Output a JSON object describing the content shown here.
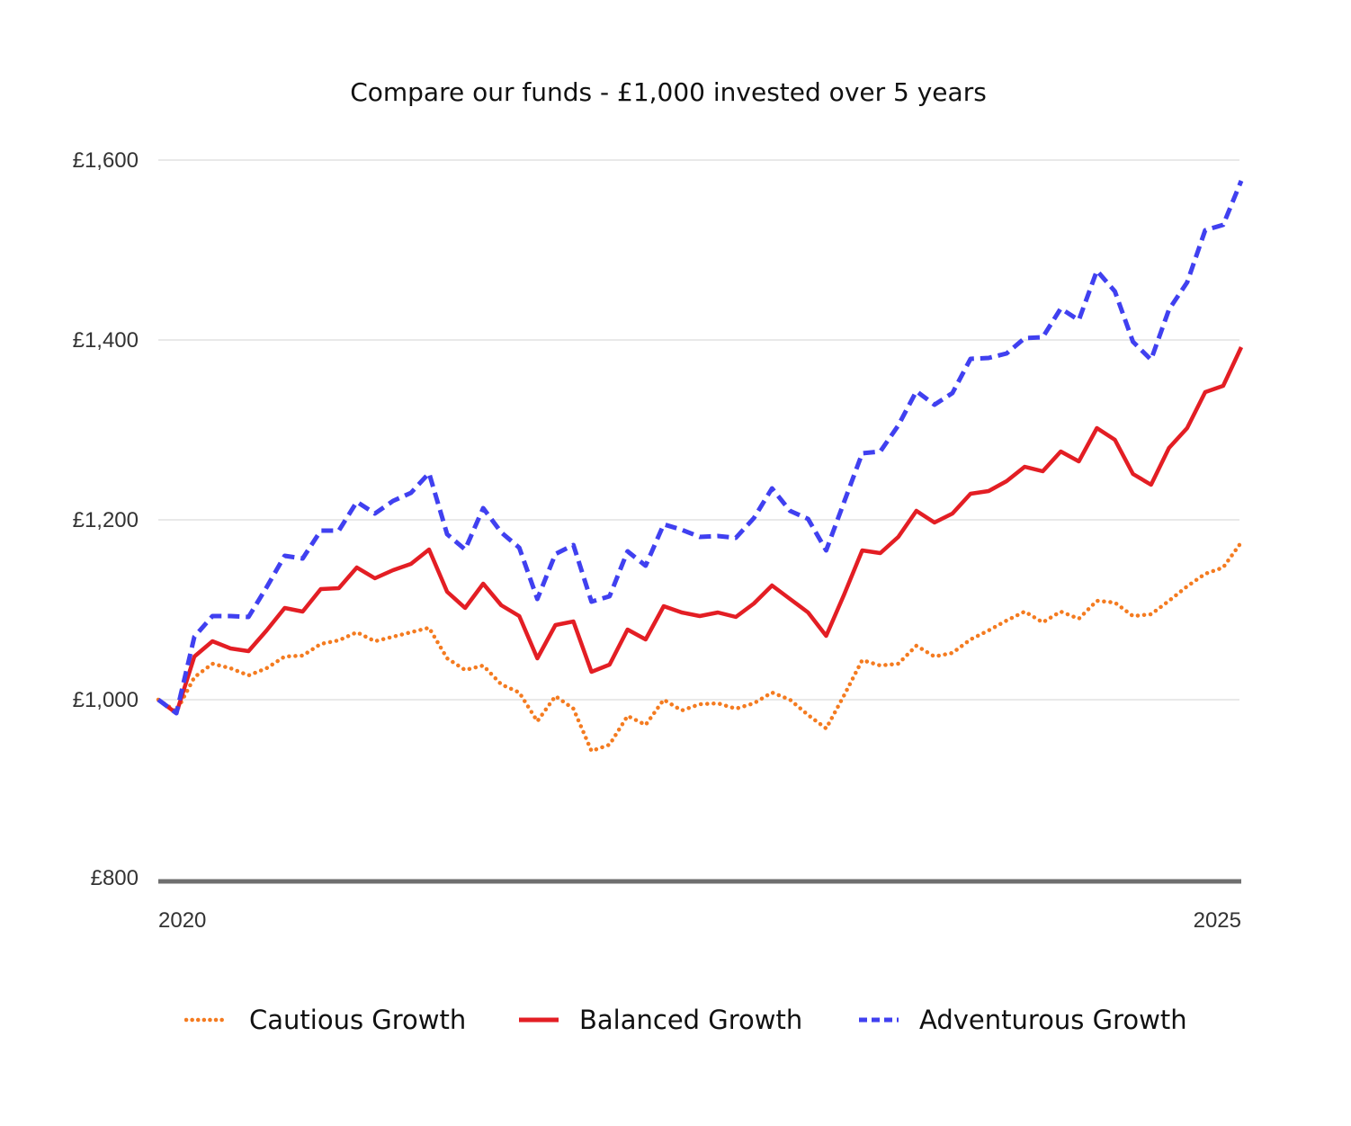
{
  "title": "Compare our funds - £1,000 invested over 5 years",
  "y_tick_labels": [
    "£800",
    "£1,000",
    "£1,200",
    "£1,400",
    "£1,600"
  ],
  "x_tick_labels": [
    "2020",
    "2025"
  ],
  "legend": [
    {
      "label": "Cautious Growth"
    },
    {
      "label": "Balanced Growth"
    },
    {
      "label": "Adventurous Growth"
    }
  ],
  "chart_data": {
    "type": "line",
    "title": "Compare our funds - £1,000 invested over 5 years",
    "xlabel": "",
    "ylabel": "",
    "x_range": [
      "2020",
      "2025"
    ],
    "ylim": [
      800,
      1600
    ],
    "yticks": [
      800,
      1000,
      1200,
      1400,
      1600
    ],
    "grid": true,
    "legend_position": "bottom",
    "series": [
      {
        "name": "Cautious Growth",
        "color": "#f47b20",
        "style": "dotted",
        "values": [
          1000,
          987,
          1025,
          1040,
          1035,
          1027,
          1035,
          1048,
          1049,
          1062,
          1066,
          1075,
          1065,
          1070,
          1075,
          1080,
          1046,
          1033,
          1038,
          1017,
          1008,
          976,
          1004,
          990,
          943,
          950,
          982,
          972,
          1000,
          988,
          995,
          996,
          990,
          996,
          1008,
          1000,
          983,
          968,
          1005,
          1044,
          1038,
          1040,
          1060,
          1048,
          1052,
          1067,
          1077,
          1088,
          1098,
          1086,
          1098,
          1090,
          1110,
          1108,
          1093,
          1095,
          1110,
          1126,
          1140,
          1147,
          1175
        ]
      },
      {
        "name": "Balanced Growth",
        "color": "#e31e24",
        "style": "solid",
        "values": [
          1000,
          985,
          1048,
          1065,
          1057,
          1054,
          1077,
          1102,
          1098,
          1123,
          1124,
          1147,
          1135,
          1144,
          1151,
          1167,
          1120,
          1102,
          1129,
          1105,
          1093,
          1046,
          1083,
          1087,
          1031,
          1039,
          1078,
          1067,
          1104,
          1097,
          1093,
          1097,
          1092,
          1107,
          1127,
          1112,
          1097,
          1071,
          1117,
          1166,
          1163,
          1181,
          1210,
          1197,
          1207,
          1229,
          1232,
          1243,
          1259,
          1254,
          1276,
          1265,
          1302,
          1289,
          1251,
          1239,
          1280,
          1302,
          1342,
          1349,
          1392
        ]
      },
      {
        "name": "Adventurous Growth",
        "color": "#4040f0",
        "style": "dashed",
        "values": [
          1000,
          985,
          1070,
          1093,
          1093,
          1092,
          1125,
          1160,
          1157,
          1188,
          1188,
          1220,
          1207,
          1221,
          1230,
          1252,
          1184,
          1167,
          1213,
          1186,
          1169,
          1112,
          1162,
          1172,
          1109,
          1115,
          1165,
          1149,
          1195,
          1189,
          1181,
          1182,
          1180,
          1202,
          1235,
          1210,
          1201,
          1166,
          1220,
          1274,
          1276,
          1305,
          1343,
          1328,
          1341,
          1379,
          1380,
          1385,
          1402,
          1403,
          1435,
          1422,
          1477,
          1454,
          1398,
          1378,
          1434,
          1464,
          1522,
          1528,
          1577
        ]
      }
    ]
  }
}
